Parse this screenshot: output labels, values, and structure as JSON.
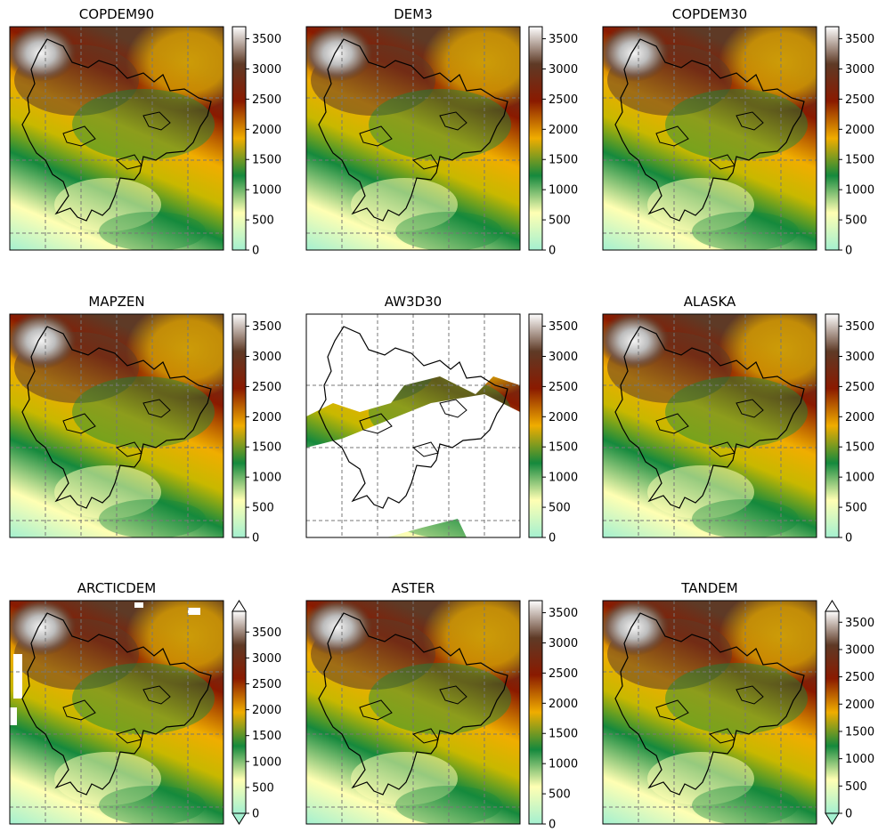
{
  "chart_data": {
    "type": "heatmap",
    "colormap": [
      "#a4f0d0",
      "#ffffb3",
      "#15893d",
      "#f0ad00",
      "#8a1a00",
      "#5e3a26",
      "#ffffff"
    ],
    "panels": [
      {
        "title": "COPDEM90",
        "variant": "full",
        "colorbar_ticks": [
          0,
          500,
          1000,
          1500,
          2000,
          2500,
          3000,
          3500
        ],
        "vmin": 0,
        "vmax": 3700,
        "colorbar_extend": "neither"
      },
      {
        "title": "DEM3",
        "variant": "full",
        "colorbar_ticks": [
          0,
          500,
          1000,
          1500,
          2000,
          2500,
          3000,
          3500
        ],
        "vmin": 0,
        "vmax": 3700,
        "colorbar_extend": "neither"
      },
      {
        "title": "COPDEM30",
        "variant": "full",
        "colorbar_ticks": [
          0,
          500,
          1000,
          1500,
          2000,
          2500,
          3000,
          3500
        ],
        "vmin": 0,
        "vmax": 3700,
        "colorbar_extend": "neither"
      },
      {
        "title": "MAPZEN",
        "variant": "full",
        "colorbar_ticks": [
          0,
          500,
          1000,
          1500,
          2000,
          2500,
          3000,
          3500
        ],
        "vmin": 0,
        "vmax": 3700,
        "colorbar_extend": "neither"
      },
      {
        "title": "AW3D30",
        "variant": "sparse",
        "colorbar_ticks": [
          0,
          500,
          1000,
          1500,
          2000,
          2500,
          3000,
          3500
        ],
        "vmin": 0,
        "vmax": 3700,
        "colorbar_extend": "neither"
      },
      {
        "title": "ALASKA",
        "variant": "full",
        "colorbar_ticks": [
          0,
          500,
          1000,
          1500,
          2000,
          2500,
          3000,
          3500
        ],
        "vmin": 0,
        "vmax": 3700,
        "colorbar_extend": "neither"
      },
      {
        "title": "ARCTICDEM",
        "variant": "gaps",
        "colorbar_ticks": [
          0,
          500,
          1000,
          1500,
          2000,
          2500,
          3000,
          3500
        ],
        "vmin": 0,
        "vmax": 3900,
        "colorbar_extend": "both"
      },
      {
        "title": "ASTER",
        "variant": "full",
        "colorbar_ticks": [
          0,
          500,
          1000,
          1500,
          2000,
          2500,
          3000,
          3500
        ],
        "vmin": 0,
        "vmax": 3700,
        "colorbar_extend": "neither"
      },
      {
        "title": "TANDEM",
        "variant": "full",
        "colorbar_ticks": [
          0,
          500,
          1000,
          1500,
          2000,
          2500,
          3000,
          3500
        ],
        "vmin": 0,
        "vmax": 3700,
        "colorbar_extend": "both"
      }
    ],
    "gridlines": "dashed",
    "outline": "black basin boundary"
  }
}
